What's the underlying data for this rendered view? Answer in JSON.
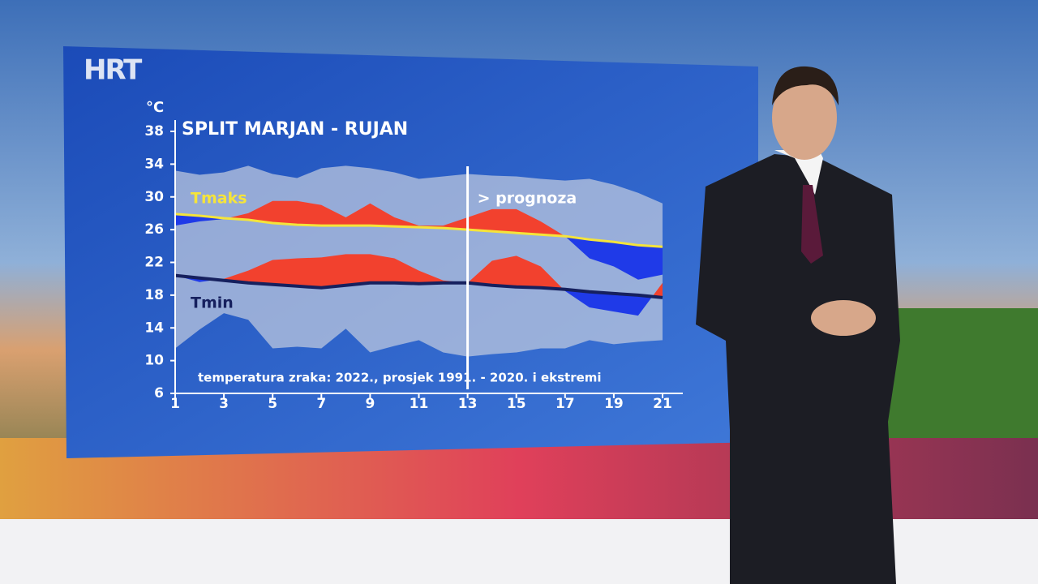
{
  "logo": "HRT",
  "chart_data": {
    "type": "band-line",
    "title": "SPLIT MARJAN - RUJAN",
    "y_label": "°C",
    "note": "temperatura zraka: 2022., prosjek 1991. - 2020. i ekstremi",
    "forecast_label": "> prognoza",
    "forecast_start": 13,
    "x": [
      1,
      2,
      3,
      4,
      5,
      6,
      7,
      8,
      9,
      10,
      11,
      12,
      13,
      14,
      15,
      16,
      17,
      18,
      19,
      20,
      21
    ],
    "xlim": [
      1,
      21
    ],
    "xticks": [
      1,
      3,
      5,
      7,
      9,
      11,
      13,
      15,
      17,
      19,
      21
    ],
    "ylim": [
      6,
      38
    ],
    "yticks": [
      6,
      10,
      14,
      18,
      22,
      26,
      30,
      34,
      38
    ],
    "series": [
      {
        "name": "Tmaks",
        "color": "#f5e43a",
        "values": [
          27.9,
          27.7,
          27.4,
          27.2,
          26.8,
          26.6,
          26.5,
          26.5,
          26.5,
          26.4,
          26.3,
          26.2,
          26.0,
          25.8,
          25.6,
          25.4,
          25.2,
          24.8,
          24.5,
          24.1,
          23.9
        ]
      },
      {
        "name": "Tmin",
        "color": "#16205e",
        "values": [
          20.4,
          20.1,
          19.8,
          19.5,
          19.3,
          19.1,
          18.9,
          19.2,
          19.5,
          19.5,
          19.4,
          19.5,
          19.5,
          19.2,
          19.0,
          18.9,
          18.7,
          18.4,
          18.2,
          18.0,
          17.7
        ]
      },
      {
        "color_above": "#f2412e",
        "color_below": "#1f3ae8",
        "values": [
          26.5,
          27.0,
          27.3,
          28.0,
          29.5,
          29.5,
          29.0,
          27.5,
          29.2,
          27.5,
          26.5,
          26.5,
          27.5,
          28.5,
          28.5,
          27.0,
          25.2,
          22.5,
          21.5,
          19.9,
          20.5
        ]
      },
      {
        "color_above": "#f2412e",
        "color_below": "#1f3ae8",
        "values": [
          20.4,
          19.6,
          20.0,
          21.0,
          22.3,
          22.5,
          22.6,
          23.0,
          23.0,
          22.5,
          21.0,
          19.8,
          19.5,
          22.2,
          22.8,
          21.5,
          18.5,
          16.5,
          16.0,
          15.5,
          19.5
        ]
      },
      {
        "color": "#c4cde0",
        "values": [
          33.2,
          32.7,
          33.0,
          33.8,
          32.8,
          32.3,
          33.5,
          33.8,
          33.5,
          33.0,
          32.2,
          32.5,
          32.8,
          32.6,
          32.5,
          32.2,
          32.0,
          32.2,
          31.5,
          30.5,
          29.2
        ]
      },
      {
        "color": "#c4cde0",
        "values": [
          11.5,
          13.8,
          15.8,
          15.0,
          11.5,
          11.7,
          11.5,
          13.9,
          11.0,
          11.8,
          12.5,
          11.0,
          10.5,
          10.8,
          11.0,
          11.5,
          11.5,
          12.5,
          12.0,
          12.3,
          12.5
        ]
      }
    ]
  }
}
